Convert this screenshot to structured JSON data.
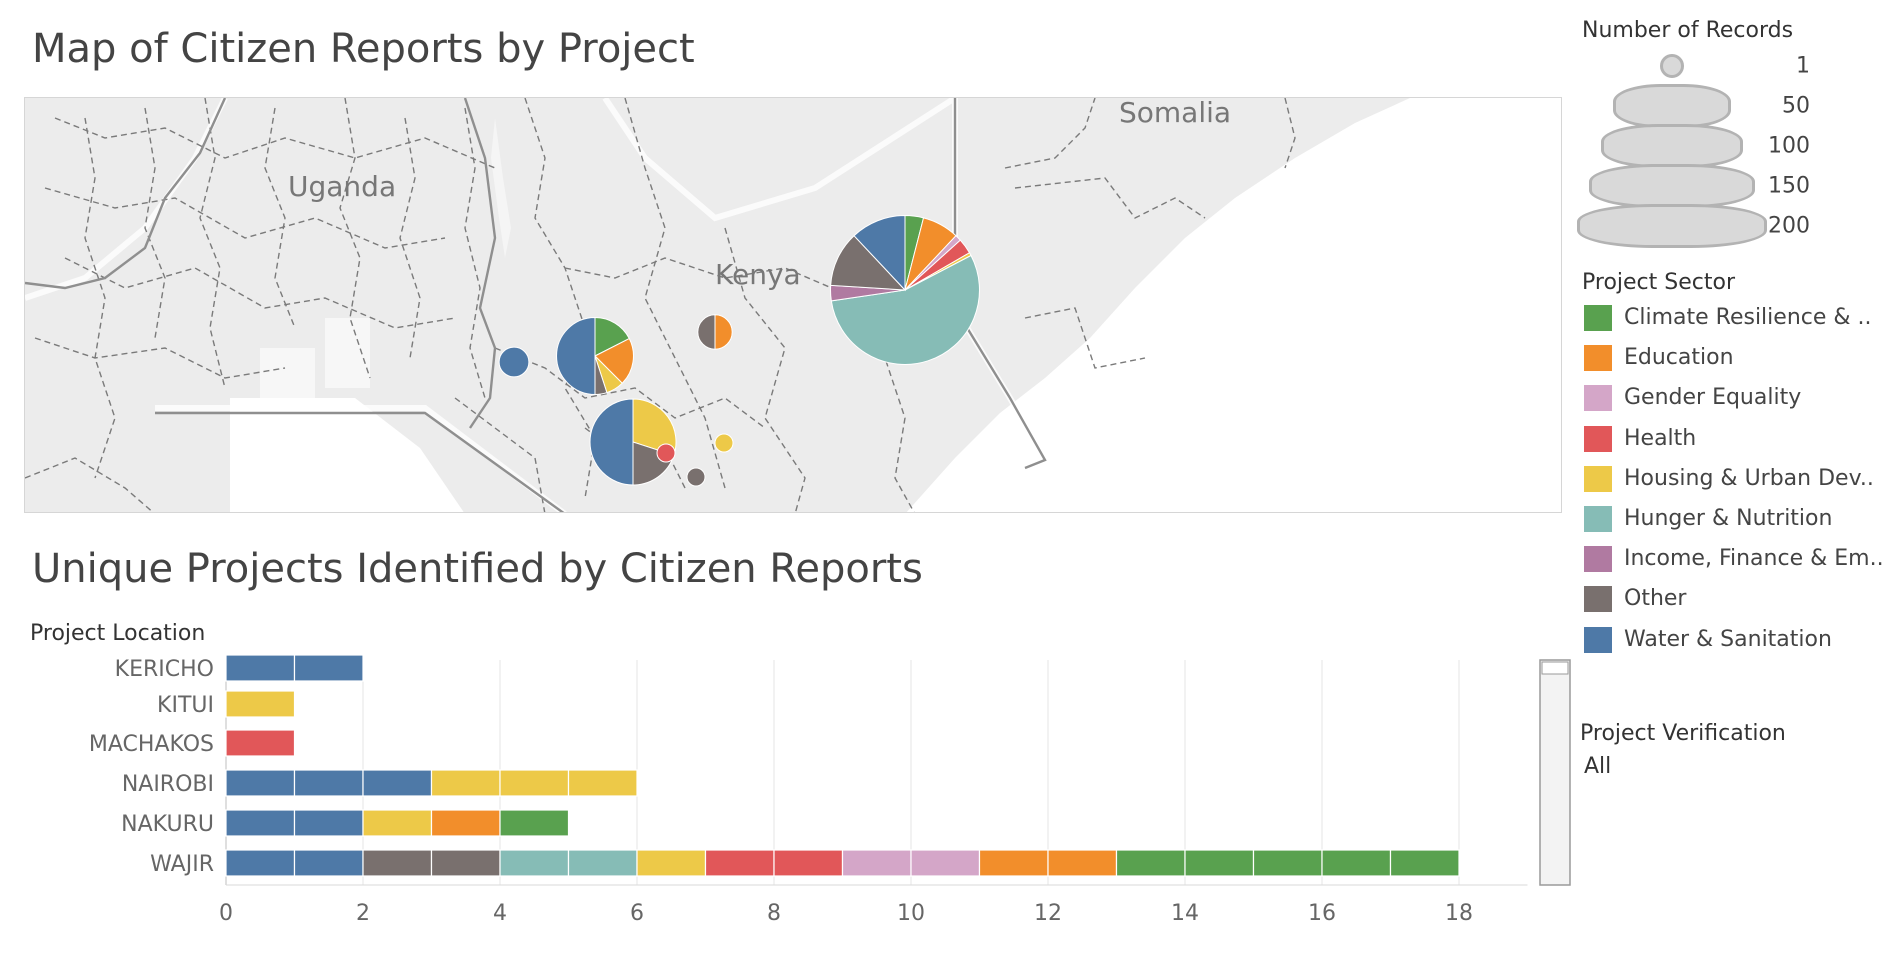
{
  "map_title": "Map of Citizen Reports by Project",
  "bar_title": "Unique Projects Identified by Citizen Reports",
  "map": {
    "country_labels": [
      {
        "name": "Uganda"
      },
      {
        "name": "Kenya"
      },
      {
        "name": "Somalia"
      }
    ],
    "pies": [
      {
        "total": 150,
        "slices": [
          {
            "sector": "Climate Resilience & ..",
            "value": 6
          },
          {
            "sector": "Education",
            "value": 12
          },
          {
            "sector": "Gender Equality",
            "value": 2
          },
          {
            "sector": "Health",
            "value": 5
          },
          {
            "sector": "Housing & Urban Dev..",
            "value": 1
          },
          {
            "sector": "Hunger & Nutrition",
            "value": 83
          },
          {
            "sector": "Income, Finance & Em..",
            "value": 5
          },
          {
            "sector": "Other",
            "value": 18
          },
          {
            "sector": "Water & Sanitation",
            "value": 18
          }
        ]
      },
      {
        "total": 8,
        "slices": [
          {
            "sector": "Education",
            "value": 4
          },
          {
            "sector": "Other",
            "value": 4
          }
        ]
      },
      {
        "total": 6,
        "slices": [
          {
            "sector": "Water & Sanitation",
            "value": 6
          }
        ]
      },
      {
        "total": 40,
        "slices": [
          {
            "sector": "Climate Resilience & ..",
            "value": 7
          },
          {
            "sector": "Education",
            "value": 8
          },
          {
            "sector": "Housing & Urban Dev..",
            "value": 3
          },
          {
            "sector": "Other",
            "value": 2
          },
          {
            "sector": "Water & Sanitation",
            "value": 20
          }
        ]
      },
      {
        "total": 50,
        "slices": [
          {
            "sector": "Housing & Urban Dev..",
            "value": 15
          },
          {
            "sector": "Other",
            "value": 10
          },
          {
            "sector": "Water & Sanitation",
            "value": 25
          }
        ]
      },
      {
        "total": 2,
        "slices": [
          {
            "sector": "Health",
            "value": 2
          }
        ]
      },
      {
        "total": 2,
        "slices": [
          {
            "sector": "Housing & Urban Dev..",
            "value": 2
          }
        ]
      },
      {
        "total": 2,
        "slices": [
          {
            "sector": "Other",
            "value": 2
          }
        ]
      }
    ]
  },
  "legend_size": {
    "title": "Number of Records",
    "items": [
      {
        "label": "1",
        "value": 1
      },
      {
        "label": "50",
        "value": 50
      },
      {
        "label": "100",
        "value": 100
      },
      {
        "label": "150",
        "value": 150
      },
      {
        "label": "200",
        "value": 200
      }
    ]
  },
  "legend_color": {
    "title": "Project Sector",
    "items": [
      {
        "label": "Climate Resilience & ..",
        "color": "#59a14f"
      },
      {
        "label": "Education",
        "color": "#f28e2b"
      },
      {
        "label": "Gender Equality",
        "color": "#d4a6c8"
      },
      {
        "label": "Health",
        "color": "#e15759"
      },
      {
        "label": "Housing & Urban Dev..",
        "color": "#edc948"
      },
      {
        "label": "Hunger & Nutrition",
        "color": "#86bcb6"
      },
      {
        "label": "Income, Finance & Em..",
        "color": "#b07aa1"
      },
      {
        "label": "Other",
        "color": "#79706e"
      },
      {
        "label": "Water & Sanitation",
        "color": "#4e79a7"
      }
    ]
  },
  "verification": {
    "title": "Project Verification",
    "value": "All"
  },
  "chart_data": {
    "type": "bar",
    "stacked": true,
    "orientation": "horizontal",
    "title": "Unique Projects Identified by Citizen Reports",
    "ylabel": "Project Location",
    "xlabel": "",
    "xlim": [
      0,
      19
    ],
    "xticks": [
      0,
      2,
      4,
      6,
      8,
      10,
      12,
      14,
      16,
      18
    ],
    "grid": true,
    "categories": [
      "KERICHO",
      "KITUI",
      "MACHAKOS",
      "NAIROBI",
      "NAKURU",
      "WAJIR"
    ],
    "series": [
      {
        "name": "Water & Sanitation",
        "values": [
          2,
          0,
          0,
          3,
          2,
          2
        ]
      },
      {
        "name": "Other",
        "values": [
          0,
          0,
          0,
          0,
          0,
          2
        ]
      },
      {
        "name": "Hunger & Nutrition",
        "values": [
          0,
          0,
          0,
          0,
          0,
          2
        ]
      },
      {
        "name": "Housing & Urban Dev..",
        "values": [
          0,
          1,
          0,
          3,
          1,
          1
        ]
      },
      {
        "name": "Health",
        "values": [
          0,
          0,
          1,
          0,
          0,
          2
        ]
      },
      {
        "name": "Gender Equality",
        "values": [
          0,
          0,
          0,
          0,
          0,
          2
        ]
      },
      {
        "name": "Education",
        "values": [
          0,
          0,
          0,
          0,
          1,
          2
        ]
      },
      {
        "name": "Climate Resilience & ..",
        "values": [
          0,
          0,
          0,
          0,
          1,
          5
        ]
      }
    ]
  }
}
